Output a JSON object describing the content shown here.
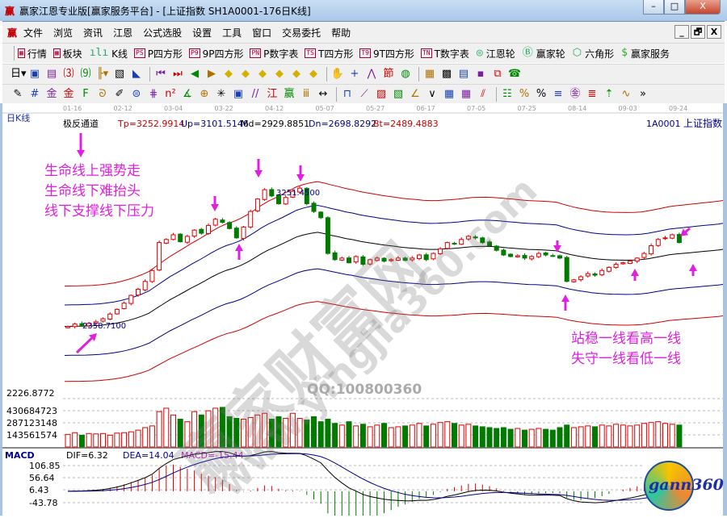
{
  "window": {
    "logo": "赢",
    "title": "赢家江恩专业版[赢家服务平台] - [上证指数  SH1A0001-176日K线]",
    "min": "–",
    "max": "□",
    "close": "X"
  },
  "menu": {
    "logo": "赢",
    "items": [
      "文件",
      "浏览",
      "资讯",
      "江恩",
      "公式选股",
      "设置",
      "工具",
      "窗口",
      "交易委托",
      "帮助"
    ],
    "mdi": [
      "_",
      "🗗",
      "X"
    ]
  },
  "toolbar1": [
    {
      "icon": "grid-icon",
      "glyph": "▦",
      "label": "行情"
    },
    {
      "icon": "blocks-icon",
      "glyph": "▩",
      "label": "板块"
    },
    {
      "icon": "candles-icon",
      "glyph": "ılı",
      "label": "K线"
    },
    {
      "icon": "ps-icon",
      "glyph": "PS",
      "label": "P四方形"
    },
    {
      "icon": "p9-icon",
      "glyph": "P9",
      "label": "9P四方形"
    },
    {
      "icon": "pn-icon",
      "glyph": "PN",
      "label": "P数字表"
    },
    {
      "icon": "ts-icon",
      "glyph": "TS",
      "label": "T四方形"
    },
    {
      "icon": "t9-icon",
      "glyph": "T9",
      "label": "9T四方形"
    },
    {
      "icon": "tn-icon",
      "glyph": "TN",
      "label": "T数字表"
    },
    {
      "icon": "gann-wheel-icon",
      "glyph": "◎",
      "label": "江恩轮"
    },
    {
      "icon": "big-wheel-icon",
      "glyph": "Ⓑ",
      "label": "赢家轮"
    },
    {
      "icon": "hexagon-icon",
      "glyph": "⬡",
      "label": "六角形"
    },
    {
      "icon": "dollar-icon",
      "glyph": "$",
      "label": "赢家服务"
    }
  ],
  "toolbar2": [
    {
      "icon": "period-day-icon",
      "glyph": "日▾"
    },
    {
      "icon": "layout-icon",
      "glyph": "▣"
    },
    {
      "icon": "list-icon",
      "glyph": "▤"
    },
    {
      "icon": "indicator-3-icon",
      "glyph": "⑶"
    },
    {
      "icon": "indicator-9-icon",
      "glyph": "⑼"
    },
    {
      "icon": "bar-type-icon",
      "glyph": "╟▾"
    },
    {
      "icon": "pattern-icon",
      "glyph": "▧"
    },
    {
      "icon": "color-icon",
      "glyph": "◣"
    },
    {
      "icon": "first-icon",
      "glyph": "⏮"
    },
    {
      "icon": "last-icon",
      "glyph": "⏭"
    },
    {
      "icon": "prev-icon",
      "glyph": "◀"
    },
    {
      "icon": "next-icon",
      "glyph": "▶"
    },
    {
      "icon": "diamond-left-icon",
      "glyph": "◆"
    },
    {
      "icon": "diamond-up-icon",
      "glyph": "◆"
    },
    {
      "icon": "diamond-expand-icon",
      "glyph": "◆"
    },
    {
      "icon": "diamond-cross-icon",
      "glyph": "◆"
    },
    {
      "icon": "diamond-shrink-icon",
      "glyph": "◆"
    },
    {
      "icon": "diamond-all-icon",
      "glyph": "◆"
    },
    {
      "icon": "hand-icon",
      "glyph": "✋"
    },
    {
      "icon": "crosshair-icon",
      "glyph": "+"
    },
    {
      "icon": "line-draw-icon",
      "glyph": "⋀"
    },
    {
      "icon": "festival-icon",
      "glyph": "節"
    },
    {
      "icon": "rotate-icon",
      "glyph": "◍"
    },
    {
      "icon": "calendar-icon",
      "glyph": "▦"
    },
    {
      "icon": "calculator-icon",
      "glyph": "▩"
    },
    {
      "icon": "notes-icon",
      "glyph": "▤"
    },
    {
      "icon": "save-icon",
      "glyph": "▪"
    },
    {
      "icon": "network-icon",
      "glyph": "⧉"
    },
    {
      "icon": "phone-icon",
      "glyph": "☎"
    }
  ],
  "toolbar3": [
    {
      "icon": "pen-icon",
      "glyph": "✎"
    },
    {
      "icon": "hash-icon",
      "glyph": "#"
    },
    {
      "icon": "gold-1-icon",
      "glyph": "金"
    },
    {
      "icon": "gold-2-icon",
      "glyph": "金"
    },
    {
      "icon": "fib-icon",
      "glyph": "F"
    },
    {
      "icon": "spiral-icon",
      "glyph": "ᘐ"
    },
    {
      "icon": "brush-icon",
      "glyph": "✐"
    },
    {
      "icon": "circle-grid-icon",
      "glyph": "⊜"
    },
    {
      "icon": "parallel-icon",
      "glyph": "⋕"
    },
    {
      "icon": "square-icon",
      "glyph": "n²"
    },
    {
      "icon": "angle-icon",
      "glyph": "∡"
    },
    {
      "icon": "target-icon",
      "glyph": "⊕"
    },
    {
      "icon": "star-icon",
      "glyph": "✳"
    },
    {
      "icon": "box-icon",
      "glyph": "▣"
    },
    {
      "icon": "slash-icon",
      "glyph": "//"
    },
    {
      "icon": "jiang-icon",
      "glyph": "江"
    },
    {
      "icon": "ying-icon",
      "glyph": "赢"
    },
    {
      "icon": "comb-icon",
      "glyph": "ⅲ"
    },
    {
      "icon": "range-icon",
      "glyph": "↔"
    },
    {
      "icon": "frame-icon",
      "glyph": "⊓"
    },
    {
      "icon": "fan-icon",
      "glyph": "⟋"
    },
    {
      "icon": "box2-icon",
      "glyph": "▨"
    },
    {
      "icon": "box3-icon",
      "glyph": "▧"
    },
    {
      "icon": "angle2-icon",
      "glyph": "∠"
    },
    {
      "icon": "wave-icon",
      "glyph": "∨"
    },
    {
      "icon": "grid2-icon",
      "glyph": "▦"
    },
    {
      "icon": "grid3-icon",
      "glyph": "▦"
    },
    {
      "icon": "lines-icon",
      "glyph": "⫽"
    },
    {
      "icon": "table-icon",
      "glyph": "☷"
    },
    {
      "icon": "percent-box-icon",
      "glyph": "%"
    },
    {
      "icon": "percent-icon",
      "glyph": "%"
    },
    {
      "icon": "percent-lines-icon",
      "glyph": "≡"
    },
    {
      "icon": "gold-circle-icon",
      "glyph": "㊎"
    },
    {
      "icon": "gold-lines-icon",
      "glyph": "≣"
    },
    {
      "icon": "bar-arrow-icon",
      "glyph": "⇡"
    },
    {
      "icon": "waveform-icon",
      "glyph": "∿"
    },
    {
      "icon": "more-icon",
      "glyph": "»"
    }
  ],
  "chart": {
    "period_label": "日K线",
    "dates": [
      "01-16",
      "02-12",
      "03-04",
      "03-22",
      "04-12",
      "05-07",
      "05-27",
      "06-17",
      "07-05",
      "07-25",
      "08-14",
      "09-03",
      "09-24"
    ],
    "indicator": {
      "name": "极反通道",
      "tp": "Tp=3252.9914",
      "up": "Up=3101.5146",
      "md": "Md=2929.8851",
      "dn": "Dn=2698.8292",
      "bt": "Bt=2489.4883"
    },
    "symbol": "1A0001",
    "symbol_name": "上证指数",
    "high_label": "3251.4500",
    "low_label": "2358.7100",
    "price_axis_label": "2226.8772",
    "volume_axis": [
      "430684723",
      "287123148",
      "143561574"
    ],
    "macd": {
      "name": "MACD",
      "dif": "DIF=6.32",
      "dea": "DEA=14.04",
      "macd": "MACD=-15.44",
      "axis": [
        "106.85",
        "56.64",
        "6.43",
        "-43.78"
      ]
    },
    "annotation_left": [
      "生命线上强势走",
      "生命线下难抬头",
      "线下支撑线下压力"
    ],
    "annotation_right": [
      "站稳一线看高一线",
      "失守一线看低一线"
    ],
    "watermark": "赢家财富网",
    "watermark_url": "www.yingjia360.com",
    "qq": "QQ:100800360",
    "logo": "gann360",
    "colors": {
      "up": "#e00000",
      "down": "#007a00",
      "band_outer": "#d00000",
      "band_inner": "#00008b",
      "band_mid": "#000000",
      "annotation": "#e020e0",
      "dif": "#000000",
      "dea": "#00008b"
    }
  },
  "chart_data": {
    "type": "candlestick",
    "closes": [
      2360,
      2375,
      2368,
      2380,
      2390,
      2410,
      2440,
      2470,
      2510,
      2560,
      2600,
      2650,
      2720,
      2900,
      2920,
      2950,
      2905,
      2940,
      2980,
      2960,
      3010,
      3050,
      3030,
      2990,
      2930,
      3000,
      3100,
      3180,
      3240,
      3200,
      3150,
      3190,
      3230,
      3250,
      3150,
      3100,
      3060,
      2830,
      2790,
      2800,
      2770,
      2810,
      2760,
      2790,
      2800,
      2780,
      2790,
      2800,
      2785,
      2800,
      2820,
      2790,
      2830,
      2860,
      2900,
      2890,
      2920,
      2940,
      2930,
      2900,
      2880,
      2850,
      2820,
      2810,
      2815,
      2800,
      2810,
      2830,
      2820,
      2815,
      2800,
      2650,
      2660,
      2680,
      2700,
      2690,
      2720,
      2740,
      2760,
      2770,
      2780,
      2800,
      2830,
      2880,
      2920,
      2930,
      2950,
      2900
    ],
    "volume_millions": [
      150,
      170,
      140,
      160,
      155,
      160,
      140,
      165,
      170,
      180,
      200,
      230,
      250,
      420,
      460,
      380,
      330,
      300,
      420,
      380,
      430,
      460,
      470,
      360,
      340,
      330,
      350,
      380,
      400,
      330,
      360,
      340,
      400,
      340,
      320,
      360,
      300,
      330,
      280,
      260,
      300,
      250,
      270,
      240,
      260,
      280,
      230,
      240,
      250,
      260,
      280,
      250,
      270,
      290,
      300,
      280,
      260,
      270,
      250,
      240,
      230,
      220,
      230,
      210,
      220,
      200,
      210,
      220,
      210,
      200,
      230,
      260,
      230,
      240,
      250,
      240,
      260,
      250,
      270,
      260,
      250,
      260,
      280,
      290,
      300,
      280,
      270,
      260
    ]
  }
}
